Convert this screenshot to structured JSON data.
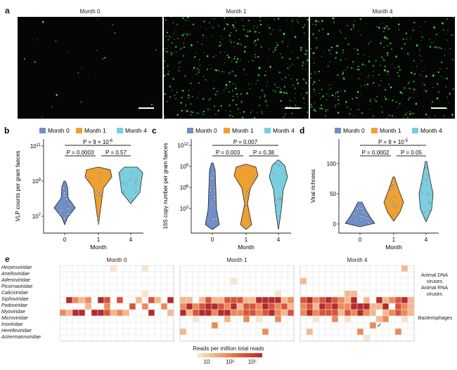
{
  "panel_a": {
    "letter": "a",
    "images": [
      {
        "title": "Month 0",
        "density": 0.05
      },
      {
        "title": "Month 1",
        "density": 1.0
      },
      {
        "title": "Month 4",
        "density": 0.8
      }
    ]
  },
  "colors": {
    "month0": "#6f8fc9",
    "month1": "#f0a030",
    "month4": "#79cfe0",
    "green": "#3dff3d"
  },
  "chart_data": [
    {
      "panel": "b",
      "type": "violin",
      "legend": [
        "Month 0",
        "Month 1",
        "Month 4"
      ],
      "xlabel": "Month",
      "ylabel": "VLP counts per gram faeces",
      "categories": [
        "0",
        "1",
        "4"
      ],
      "yscale": "log",
      "yticks": [
        "10^7",
        "10^9",
        "10^11"
      ],
      "comparisons": [
        {
          "text": "P = 9 × 10^-6",
          "pair": [
            "0",
            "4"
          ]
        },
        {
          "text": "P = 0.0003",
          "pair": [
            "0",
            "1"
          ]
        },
        {
          "text": "P = 0.57",
          "pair": [
            "1",
            "4"
          ]
        }
      ]
    },
    {
      "panel": "c",
      "type": "violin",
      "legend": [
        "Month 0",
        "Month 1",
        "Month 4"
      ],
      "xlabel": "Month",
      "ylabel": "16S copy number per gram faeces",
      "categories": [
        "0",
        "1",
        "4"
      ],
      "yscale": "log",
      "yticks": [
        "10^3",
        "10^6",
        "10^9",
        "10^12"
      ],
      "comparisons": [
        {
          "text": "P = 0.007",
          "pair": [
            "0",
            "4"
          ]
        },
        {
          "text": "P = 0.003",
          "pair": [
            "0",
            "1"
          ]
        },
        {
          "text": "P = 0.38",
          "pair": [
            "1",
            "4"
          ]
        }
      ]
    },
    {
      "panel": "d",
      "type": "violin",
      "legend": [
        "Month 0",
        "Month 1",
        "Month 4"
      ],
      "xlabel": "Month",
      "ylabel": "Viral richness",
      "categories": [
        "0",
        "1",
        "4"
      ],
      "yticks": [
        "0",
        "50",
        "100"
      ],
      "ylim": [
        0,
        110
      ],
      "comparisons": [
        {
          "text": "P = 9 × 10^-5",
          "pair": [
            "0",
            "4"
          ]
        },
        {
          "text": "P = 0.0002",
          "pair": [
            "0",
            "1"
          ]
        },
        {
          "text": "P = 0.05",
          "pair": [
            "1",
            "4"
          ]
        }
      ]
    },
    {
      "panel": "e",
      "type": "heatmap",
      "columns_per_group": 18,
      "groups": [
        "Month 0",
        "Month 1",
        "Month 4"
      ],
      "rows": [
        "Herpesviridae",
        "Anelloviridae",
        "Adenoviridae",
        "Picornaviridae",
        "Caliciviridae",
        "Siphoviridae",
        "Podoviridae",
        "Myoviridae",
        "Microviridae",
        "Inoviridae",
        "Herelleviridae",
        "Ackermannviridae"
      ],
      "row_groups": [
        {
          "label": "Animal DNA viruses",
          "rows": [
            0,
            1,
            2
          ]
        },
        {
          "label": "Animal RNA viruses",
          "rows": [
            3,
            4
          ]
        },
        {
          "label": "Bacteriophages",
          "rows": [
            5,
            6,
            7,
            8,
            9,
            10,
            11
          ]
        }
      ],
      "legend_title": "Reads per million total reads",
      "legend_ticks": [
        "10",
        "10³",
        "10⁵"
      ]
    }
  ],
  "text": {
    "panel_e_letter": "e",
    "group_month0": "Month 0",
    "group_month1": "Month 1",
    "group_month4": "Month 4",
    "grp_dna_1": "Animal DNA",
    "grp_dna_2": "viruses",
    "grp_rna_1": "Animal RNA",
    "grp_rna_2": "viruses",
    "grp_phage": "Bacteriophages",
    "checkmark": "✓"
  }
}
